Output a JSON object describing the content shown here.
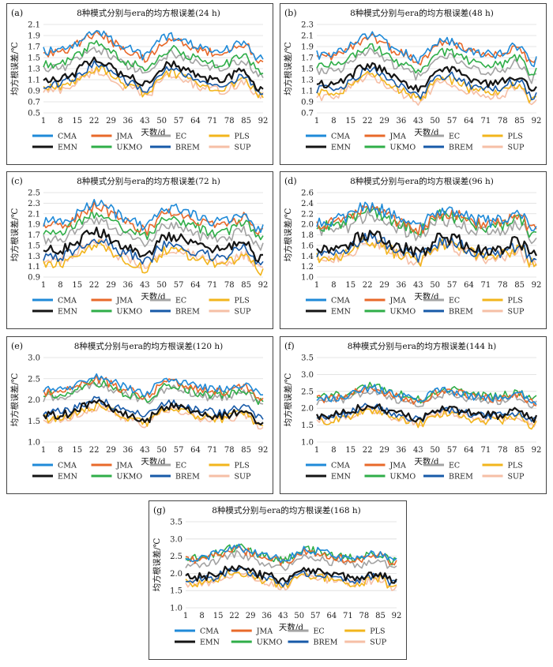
{
  "x_ticks": [
    "1",
    "8",
    "15",
    "22",
    "29",
    "36",
    "43",
    "50",
    "57",
    "64",
    "71",
    "78",
    "85",
    "92"
  ],
  "legend": [
    "CMA",
    "JMA",
    "EC",
    "PLS",
    "EMN",
    "UKMO",
    "BREM",
    "SUP"
  ],
  "series_colors": {
    "CMA": "#1f8ad8",
    "JMA": "#e8692a",
    "EC": "#a3a3a3",
    "PLS": "#f2b51c",
    "EMN": "#141414",
    "UKMO": "#2fae48",
    "BREM": "#175aa8",
    "SUP": "#f6bfa6"
  },
  "chart_data": [
    {
      "type": "line",
      "panel_label": "(a)",
      "title": "8种模式分别与era的均方根误差(24 h)",
      "xlabel": "天数/d",
      "ylabel": "均方根误差/℃",
      "ylim": [
        0.5,
        2.1
      ],
      "yticks": [
        "0.5",
        "0.7",
        "0.9",
        "1.1",
        "1.3",
        "1.5",
        "1.7",
        "1.9",
        "2.1"
      ],
      "series_base": {
        "CMA": 1.62,
        "JMA": 1.58,
        "EC": 1.3,
        "PLS": 0.95,
        "EMN": 1.1,
        "UKMO": 1.38,
        "BREM": 1.02,
        "SUP": 0.9
      },
      "peak_amplitude": 0.35,
      "noise": 0.08
    },
    {
      "type": "line",
      "panel_label": "(b)",
      "title": "8种模式分别与era的均方根误差(48 h)",
      "xlabel": "天数/d",
      "ylabel": "均方根误差/℃",
      "ylim": [
        0.7,
        2.3
      ],
      "yticks": [
        "0.7",
        "0.9",
        "1.1",
        "1.3",
        "1.5",
        "1.7",
        "1.9",
        "2.1",
        "2.3"
      ],
      "series_base": {
        "CMA": 1.75,
        "JMA": 1.72,
        "EC": 1.45,
        "PLS": 1.05,
        "EMN": 1.22,
        "UKMO": 1.55,
        "BREM": 1.12,
        "SUP": 1.0
      },
      "peak_amplitude": 0.35,
      "noise": 0.08
    },
    {
      "type": "line",
      "panel_label": "(c)",
      "title": "8种模式分别与era的均方根误差(72 h)",
      "xlabel": "天数/d",
      "ylabel": "均方根误差/℃",
      "ylim": [
        0.9,
        2.5
      ],
      "yticks": [
        "0.9",
        "1.1",
        "1.3",
        "1.5",
        "1.7",
        "1.9",
        "2.1",
        "2.3",
        "2.5"
      ],
      "series_base": {
        "CMA": 1.95,
        "JMA": 1.88,
        "EC": 1.62,
        "PLS": 1.15,
        "EMN": 1.4,
        "UKMO": 1.75,
        "BREM": 1.28,
        "SUP": 1.18
      },
      "peak_amplitude": 0.35,
      "noise": 0.1
    },
    {
      "type": "line",
      "panel_label": "(d)",
      "title": "8种模式分别与era的均方根误差(96 h)",
      "xlabel": "天数/d",
      "ylabel": "均方根误差/℃",
      "ylim": [
        1.0,
        2.6
      ],
      "yticks": [
        "1.0",
        "1.2",
        "1.4",
        "1.6",
        "1.8",
        "2.0",
        "2.2",
        "2.4",
        "2.6"
      ],
      "series_base": {
        "CMA": 2.05,
        "JMA": 2.0,
        "EC": 1.85,
        "PLS": 1.38,
        "EMN": 1.52,
        "UKMO": 1.95,
        "BREM": 1.45,
        "SUP": 1.35
      },
      "peak_amplitude": 0.3,
      "noise": 0.12
    },
    {
      "type": "line",
      "panel_label": "(e)",
      "title": "8种模式分别与era的均方根误差(120 h)",
      "xlabel": "天数/d",
      "ylabel": "均方根误差/℃",
      "ylim": [
        1.0,
        3.0
      ],
      "yticks": [
        "1.0",
        "1.5",
        "2.0",
        "2.5",
        "3.0"
      ],
      "series_base": {
        "CMA": 2.25,
        "JMA": 2.18,
        "EC": 2.05,
        "PLS": 1.55,
        "EMN": 1.62,
        "UKMO": 2.1,
        "BREM": 1.7,
        "SUP": 1.52
      },
      "peak_amplitude": 0.3,
      "noise": 0.1
    },
    {
      "type": "line",
      "panel_label": "(f)",
      "title": "8种模式分别与era的均方根误差(144 h)",
      "xlabel": "天数/d",
      "ylabel": "均方根误差/℃",
      "ylim": [
        1.0,
        3.5
      ],
      "yticks": [
        "1.0",
        "1.5",
        "2.0",
        "2.5",
        "3.0",
        "3.5"
      ],
      "series_base": {
        "CMA": 2.3,
        "JMA": 2.28,
        "EC": 2.2,
        "PLS": 1.62,
        "EMN": 1.78,
        "UKMO": 2.35,
        "BREM": 1.75,
        "SUP": 1.65
      },
      "peak_amplitude": 0.3,
      "noise": 0.12
    },
    {
      "type": "line",
      "panel_label": "(g)",
      "title": "8种模式分别与era的均方根误差(168 h)",
      "xlabel": "天数/d",
      "ylabel": "均方根误差/℃",
      "ylim": [
        1.0,
        3.5
      ],
      "yticks": [
        "1.0",
        "1.5",
        "2.0",
        "2.5",
        "3.0",
        "3.5"
      ],
      "series_base": {
        "CMA": 2.45,
        "JMA": 2.4,
        "EC": 2.25,
        "PLS": 1.72,
        "EMN": 1.88,
        "UKMO": 2.45,
        "BREM": 1.8,
        "SUP": 1.7
      },
      "peak_amplitude": 0.3,
      "noise": 0.12
    }
  ]
}
